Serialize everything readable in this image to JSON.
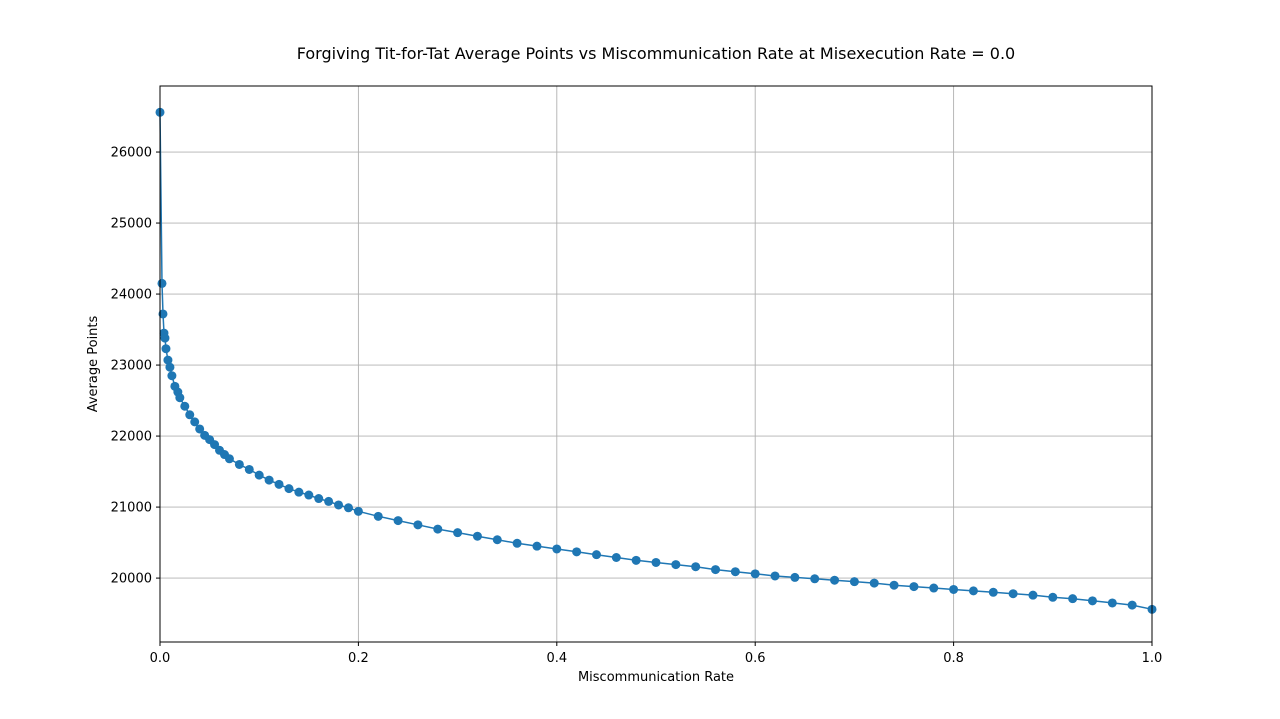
{
  "chart_data": {
    "type": "scatter",
    "title": "Forgiving Tit-for-Tat Average Points vs Miscommunication Rate at Misexecution Rate = 0.0",
    "xlabel": "Miscommunication Rate",
    "ylabel": "Average Points",
    "xlim": [
      0.0,
      1.0
    ],
    "ylim": [
      19100,
      26930
    ],
    "xticks": [
      0.0,
      0.2,
      0.4,
      0.6,
      0.8,
      1.0
    ],
    "xtick_labels": [
      "0.0",
      "0.2",
      "0.4",
      "0.6",
      "0.8",
      "1.0"
    ],
    "yticks": [
      20000,
      21000,
      22000,
      23000,
      24000,
      25000,
      26000
    ],
    "ytick_labels": [
      "20000",
      "21000",
      "22000",
      "23000",
      "24000",
      "25000",
      "26000"
    ],
    "grid": true,
    "legend": "none",
    "series": [
      {
        "color": "#1f77b4",
        "marker": "circle",
        "line": true,
        "x": [
          0.0,
          0.002,
          0.003,
          0.004,
          0.005,
          0.006,
          0.008,
          0.01,
          0.012,
          0.015,
          0.018,
          0.02,
          0.025,
          0.03,
          0.035,
          0.04,
          0.045,
          0.05,
          0.055,
          0.06,
          0.065,
          0.07,
          0.08,
          0.09,
          0.1,
          0.11,
          0.12,
          0.13,
          0.14,
          0.15,
          0.16,
          0.17,
          0.18,
          0.19,
          0.2,
          0.22,
          0.24,
          0.26,
          0.28,
          0.3,
          0.32,
          0.34,
          0.36,
          0.38,
          0.4,
          0.42,
          0.44,
          0.46,
          0.48,
          0.5,
          0.52,
          0.54,
          0.56,
          0.58,
          0.6,
          0.62,
          0.64,
          0.66,
          0.68,
          0.7,
          0.72,
          0.74,
          0.76,
          0.78,
          0.8,
          0.82,
          0.84,
          0.86,
          0.88,
          0.9,
          0.92,
          0.94,
          0.96,
          0.98,
          1.0
        ],
        "y": [
          26560,
          24150,
          23720,
          23450,
          23380,
          23230,
          23070,
          22970,
          22850,
          22700,
          22620,
          22540,
          22420,
          22300,
          22200,
          22100,
          22010,
          21950,
          21880,
          21800,
          21740,
          21680,
          21600,
          21530,
          21450,
          21380,
          21320,
          21260,
          21210,
          21170,
          21120,
          21080,
          21030,
          20990,
          20940,
          20870,
          20810,
          20750,
          20690,
          20640,
          20590,
          20540,
          20490,
          20450,
          20410,
          20370,
          20330,
          20290,
          20250,
          20220,
          20190,
          20160,
          20120,
          20090,
          20060,
          20030,
          20010,
          19990,
          19970,
          19950,
          19930,
          19900,
          19880,
          19860,
          19840,
          19820,
          19800,
          19780,
          19760,
          19730,
          19710,
          19680,
          19650,
          19620,
          19560
        ]
      }
    ]
  }
}
